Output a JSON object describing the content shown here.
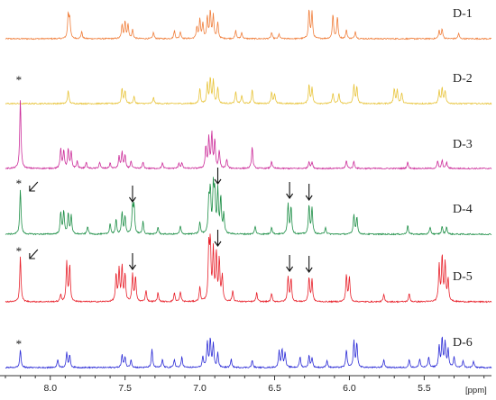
{
  "chart_data": {
    "type": "line",
    "title": "",
    "xlabel": "",
    "xunit": "[ppm]",
    "xlim": [
      8.3,
      5.05
    ],
    "x_reversed": true,
    "xticks": [
      {
        "value": 8.0,
        "label": "8.0"
      },
      {
        "value": 7.5,
        "label": "7.5"
      },
      {
        "value": 7.0,
        "label": "7.0"
      },
      {
        "value": 6.5,
        "label": "6.5"
      },
      {
        "value": 6.0,
        "label": "6.0"
      },
      {
        "value": 5.5,
        "label": "5.5"
      }
    ],
    "series": [
      {
        "name": "D-1",
        "color": "#f07f3c",
        "asterisk": false,
        "peaks": [
          [
            7.88,
            26
          ],
          [
            7.87,
            22
          ],
          [
            7.79,
            8
          ],
          [
            7.52,
            15
          ],
          [
            7.5,
            19
          ],
          [
            7.48,
            16
          ],
          [
            7.45,
            10
          ],
          [
            7.31,
            7
          ],
          [
            7.17,
            9
          ],
          [
            7.13,
            8
          ],
          [
            7.02,
            13
          ],
          [
            7.0,
            21
          ],
          [
            6.98,
            16
          ],
          [
            6.95,
            24
          ],
          [
            6.93,
            30
          ],
          [
            6.91,
            26
          ],
          [
            6.88,
            18
          ],
          [
            6.76,
            9
          ],
          [
            6.72,
            7
          ],
          [
            6.52,
            7
          ],
          [
            6.47,
            5
          ],
          [
            6.27,
            32
          ],
          [
            6.25,
            29
          ],
          [
            6.11,
            27
          ],
          [
            6.08,
            24
          ],
          [
            6.02,
            10
          ],
          [
            5.96,
            8
          ],
          [
            5.4,
            9
          ],
          [
            5.38,
            11
          ],
          [
            5.27,
            6
          ]
        ],
        "arrows": []
      },
      {
        "name": "D-2",
        "color": "#e8c43a",
        "asterisk": true,
        "peaks": [
          [
            7.88,
            15
          ],
          [
            7.52,
            17
          ],
          [
            7.5,
            14
          ],
          [
            7.44,
            8
          ],
          [
            7.31,
            7
          ],
          [
            7.0,
            17
          ],
          [
            6.95,
            22
          ],
          [
            6.93,
            28
          ],
          [
            6.91,
            26
          ],
          [
            6.88,
            18
          ],
          [
            6.76,
            13
          ],
          [
            6.72,
            9
          ],
          [
            6.65,
            15
          ],
          [
            6.52,
            13
          ],
          [
            6.5,
            11
          ],
          [
            6.27,
            21
          ],
          [
            6.25,
            18
          ],
          [
            6.11,
            12
          ],
          [
            6.07,
            11
          ],
          [
            5.97,
            21
          ],
          [
            5.95,
            18
          ],
          [
            5.7,
            17
          ],
          [
            5.68,
            15
          ],
          [
            5.65,
            12
          ],
          [
            5.4,
            14
          ],
          [
            5.38,
            17
          ],
          [
            5.36,
            14
          ]
        ],
        "arrows": []
      },
      {
        "name": "D-3",
        "color": "#cc2d9a",
        "asterisk": false,
        "peaks": [
          [
            8.2,
            76
          ],
          [
            7.93,
            22
          ],
          [
            7.91,
            20
          ],
          [
            7.88,
            21
          ],
          [
            7.86,
            18
          ],
          [
            7.82,
            8
          ],
          [
            7.76,
            7
          ],
          [
            7.67,
            7
          ],
          [
            7.6,
            6
          ],
          [
            7.54,
            13
          ],
          [
            7.52,
            18
          ],
          [
            7.5,
            14
          ],
          [
            7.46,
            8
          ],
          [
            7.38,
            7
          ],
          [
            7.25,
            6
          ],
          [
            7.14,
            6
          ],
          [
            7.12,
            6
          ],
          [
            6.96,
            24
          ],
          [
            6.94,
            33
          ],
          [
            6.92,
            38
          ],
          [
            6.9,
            31
          ],
          [
            6.87,
            19
          ],
          [
            6.82,
            10
          ],
          [
            6.65,
            24
          ],
          [
            6.52,
            8
          ],
          [
            6.27,
            8
          ],
          [
            6.25,
            7
          ],
          [
            6.02,
            9
          ],
          [
            5.97,
            8
          ],
          [
            5.61,
            7
          ],
          [
            5.41,
            8
          ],
          [
            5.38,
            9
          ],
          [
            5.35,
            7
          ]
        ],
        "arrows": []
      },
      {
        "name": "D-4",
        "color": "#1e8f47",
        "asterisk": true,
        "peaks": [
          [
            8.2,
            50
          ],
          [
            7.93,
            24
          ],
          [
            7.91,
            26
          ],
          [
            7.88,
            23
          ],
          [
            7.86,
            20
          ],
          [
            7.75,
            9
          ],
          [
            7.6,
            12
          ],
          [
            7.56,
            16
          ],
          [
            7.52,
            24
          ],
          [
            7.5,
            20
          ],
          [
            7.45,
            29
          ],
          [
            7.44,
            30
          ],
          [
            7.38,
            14
          ],
          [
            7.28,
            8
          ],
          [
            7.13,
            9
          ],
          [
            7.0,
            13
          ],
          [
            6.94,
            36
          ],
          [
            6.93,
            46
          ],
          [
            6.91,
            50
          ],
          [
            6.9,
            42
          ],
          [
            6.88,
            48
          ],
          [
            6.86,
            40
          ],
          [
            6.84,
            22
          ],
          [
            6.63,
            9
          ],
          [
            6.52,
            8
          ],
          [
            6.41,
            34
          ],
          [
            6.39,
            30
          ],
          [
            6.27,
            32
          ],
          [
            6.25,
            29
          ],
          [
            6.16,
            8
          ],
          [
            5.97,
            22
          ],
          [
            5.95,
            19
          ],
          [
            5.61,
            10
          ],
          [
            5.46,
            8
          ],
          [
            5.38,
            9
          ],
          [
            5.35,
            8
          ]
        ],
        "arrows": [
          {
            "x": 7.45,
            "dir": "down"
          },
          {
            "x": 6.88,
            "dir": "down"
          },
          {
            "x": 6.4,
            "dir": "down"
          },
          {
            "x": 6.27,
            "dir": "down"
          },
          {
            "x": 8.12,
            "dir": "diag"
          }
        ]
      },
      {
        "name": "D-5",
        "color": "#e8202a",
        "asterisk": true,
        "peaks": [
          [
            8.2,
            50
          ],
          [
            7.93,
            8
          ],
          [
            7.89,
            44
          ],
          [
            7.87,
            40
          ],
          [
            7.56,
            30
          ],
          [
            7.54,
            35
          ],
          [
            7.52,
            38
          ],
          [
            7.5,
            30
          ],
          [
            7.45,
            30
          ],
          [
            7.43,
            27
          ],
          [
            7.36,
            13
          ],
          [
            7.28,
            10
          ],
          [
            7.17,
            10
          ],
          [
            7.13,
            11
          ],
          [
            7.0,
            16
          ],
          [
            6.94,
            58
          ],
          [
            6.93,
            60
          ],
          [
            6.91,
            56
          ],
          [
            6.89,
            52
          ],
          [
            6.87,
            46
          ],
          [
            6.85,
            28
          ],
          [
            6.78,
            12
          ],
          [
            6.62,
            10
          ],
          [
            6.52,
            9
          ],
          [
            6.41,
            28
          ],
          [
            6.39,
            25
          ],
          [
            6.27,
            27
          ],
          [
            6.25,
            24
          ],
          [
            6.02,
            30
          ],
          [
            6.0,
            27
          ],
          [
            5.77,
            8
          ],
          [
            5.6,
            9
          ],
          [
            5.4,
            40
          ],
          [
            5.38,
            50
          ],
          [
            5.36,
            42
          ],
          [
            5.34,
            25
          ]
        ],
        "arrows": [
          {
            "x": 7.45,
            "dir": "down"
          },
          {
            "x": 6.88,
            "dir": "down"
          },
          {
            "x": 6.4,
            "dir": "down"
          },
          {
            "x": 6.27,
            "dir": "down"
          },
          {
            "x": 8.12,
            "dir": "diag"
          }
        ]
      },
      {
        "name": "D-6",
        "color": "#2b2bd6",
        "asterisk": true,
        "peaks": [
          [
            8.2,
            20
          ],
          [
            7.95,
            9
          ],
          [
            7.89,
            16
          ],
          [
            7.87,
            14
          ],
          [
            7.52,
            14
          ],
          [
            7.5,
            12
          ],
          [
            7.46,
            9
          ],
          [
            7.32,
            20
          ],
          [
            7.25,
            9
          ],
          [
            7.17,
            9
          ],
          [
            7.12,
            12
          ],
          [
            6.98,
            12
          ],
          [
            6.95,
            28
          ],
          [
            6.93,
            31
          ],
          [
            6.91,
            26
          ],
          [
            6.88,
            16
          ],
          [
            6.79,
            9
          ],
          [
            6.65,
            8
          ],
          [
            6.47,
            18
          ],
          [
            6.45,
            20
          ],
          [
            6.43,
            16
          ],
          [
            6.33,
            12
          ],
          [
            6.27,
            13
          ],
          [
            6.25,
            11
          ],
          [
            6.15,
            8
          ],
          [
            6.02,
            20
          ],
          [
            5.97,
            29
          ],
          [
            5.95,
            27
          ],
          [
            5.77,
            9
          ],
          [
            5.6,
            9
          ],
          [
            5.53,
            10
          ],
          [
            5.47,
            12
          ],
          [
            5.4,
            24
          ],
          [
            5.38,
            32
          ],
          [
            5.36,
            28
          ],
          [
            5.34,
            20
          ],
          [
            5.3,
            12
          ],
          [
            5.24,
            8
          ],
          [
            5.17,
            7
          ]
        ],
        "arrows": []
      }
    ]
  }
}
